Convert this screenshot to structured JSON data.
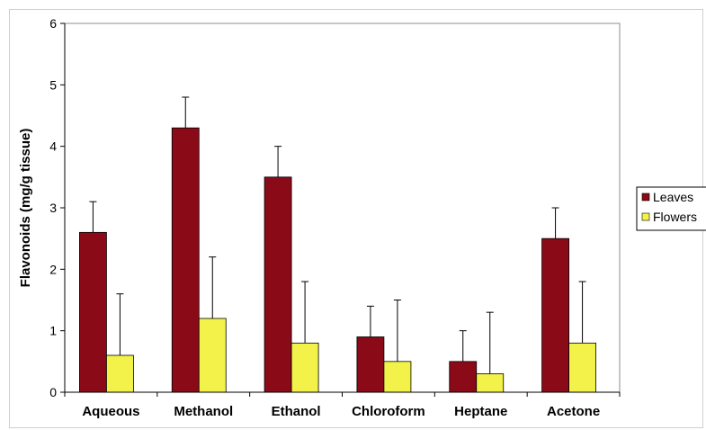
{
  "chart_data": {
    "type": "bar",
    "title": "",
    "xlabel": "",
    "ylabel": "Flavonoids (mg/g tissue)",
    "ylim": [
      0,
      6
    ],
    "yticks": [
      0,
      1,
      2,
      3,
      4,
      5,
      6
    ],
    "categories": [
      "Aqueous",
      "Methanol",
      "Ethanol",
      "Chloroform",
      "Heptane",
      "Acetone"
    ],
    "series": [
      {
        "name": "Leaves",
        "color": "#8b0a18",
        "values": [
          2.6,
          4.3,
          3.5,
          0.9,
          0.5,
          2.5
        ],
        "errors": [
          0.5,
          0.5,
          0.5,
          0.5,
          0.5,
          0.5
        ]
      },
      {
        "name": "Flowers",
        "color": "#f2f24a",
        "values": [
          0.6,
          1.2,
          0.8,
          0.5,
          0.3,
          0.8
        ],
        "errors": [
          1.0,
          1.0,
          1.0,
          1.0,
          1.0,
          1.0
        ]
      }
    ],
    "grid": false,
    "legend": "right"
  }
}
